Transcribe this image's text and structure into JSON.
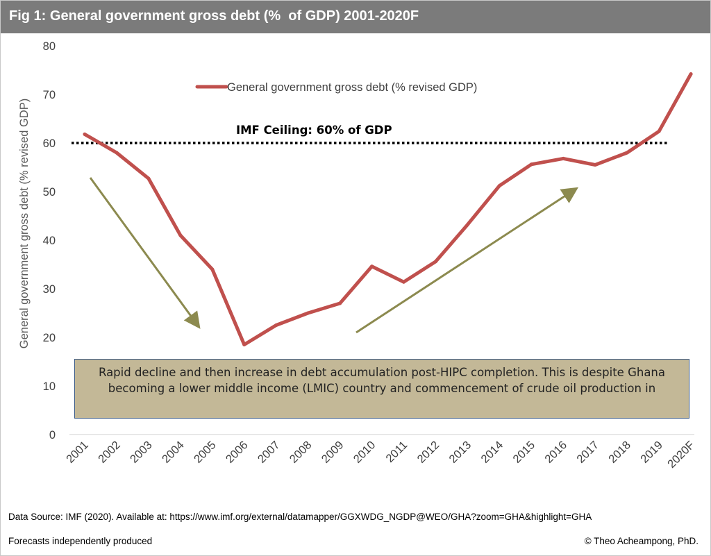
{
  "figure": {
    "title": "Fig 1: General government gross debt (%  of GDP) 2001-2020F",
    "source": "Data Source: IMF (2020). Available at: https://www.imf.org/external/datamapper/GGXWDG_NGDP@WEO/GHA?zoom=GHA&highlight=GHA",
    "forecast_note": "Forecasts independently produced",
    "copyright": "© Theo Acheampong, PhD."
  },
  "colors": {
    "series": "#c0504d",
    "arrow": "#8c8a4f",
    "title_bar": "#7b7b7b",
    "note_fill": "#c3b897",
    "note_border": "#3a5a86"
  },
  "chart_data": {
    "type": "line",
    "title": "Fig 1: General government gross debt (%  of GDP) 2001-2020F",
    "ylabel": "General government gross debt (% revised GDP)",
    "xlabel": "",
    "ylim": [
      0,
      80
    ],
    "yticks": [
      0,
      10,
      20,
      30,
      40,
      50,
      60,
      70,
      80
    ],
    "grid": false,
    "legend_position": "top-center",
    "categories": [
      "2001",
      "2002",
      "2003",
      "2004",
      "2005",
      "2006",
      "2007",
      "2008",
      "2009",
      "2010",
      "2011",
      "2012",
      "2013",
      "2014",
      "2015",
      "2016",
      "2017",
      "2018",
      "2019",
      "2020F"
    ],
    "series": [
      {
        "name": "General government gross debt (% revised GDP)",
        "values": [
          61.8,
          58.0,
          52.7,
          41.0,
          34.0,
          18.5,
          22.5,
          25.0,
          27.0,
          34.6,
          31.4,
          35.6,
          43.2,
          51.2,
          55.6,
          56.8,
          55.5,
          58.0,
          62.4,
          74.2
        ]
      }
    ],
    "reference_line": {
      "value": 60,
      "label": "IMF Ceiling: 60% of GDP"
    },
    "annotation": "Rapid decline and then increase in debt accumulation post-HIPC completion. This is despite Ghana becoming a lower middle income (LMIC) country and commencement of crude oil production in"
  }
}
